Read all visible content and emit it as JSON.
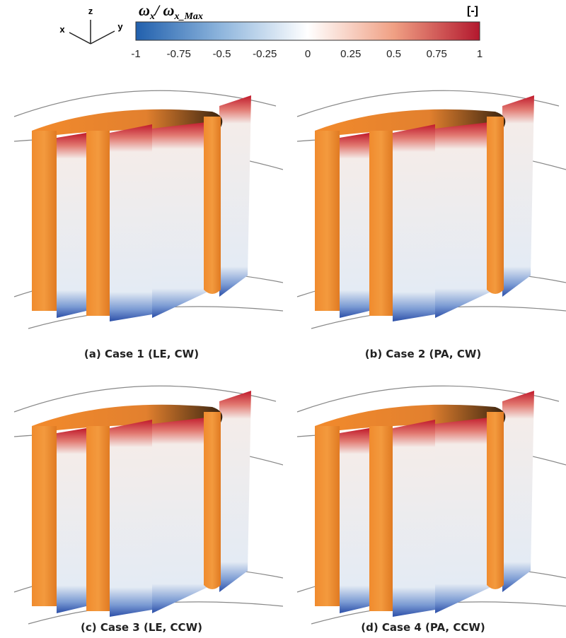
{
  "legend": {
    "title_symbol": "ω",
    "title_sub": "x",
    "title_sep": "/ ω",
    "title_sub2": "x_Max",
    "unit": "[-]",
    "ticks": [
      -1,
      -0.75,
      -0.5,
      -0.25,
      0,
      0.25,
      0.5,
      0.75,
      1
    ]
  },
  "axes_triad": {
    "x": "x",
    "y": "y",
    "z": "z"
  },
  "panels": [
    {
      "caption": "(a) Case 1 (LE, CW)"
    },
    {
      "caption": "(b) Case 2 (PA, CW)"
    },
    {
      "caption": "(c) Case 3 (LE, CCW)"
    },
    {
      "caption": "(d) Case 4 (PA, CCW)"
    }
  ]
}
